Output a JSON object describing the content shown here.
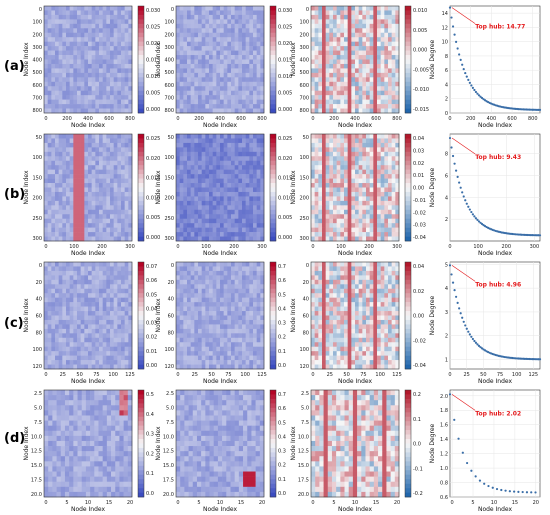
{
  "figure": {
    "rows": [
      {
        "label": "(a)",
        "top_hub_label": "Top hub: 14.77"
      },
      {
        "label": "(b)",
        "top_hub_label": "Top hub: 9.43"
      },
      {
        "label": "(c)",
        "top_hub_label": "Top hub: 4.96"
      },
      {
        "label": "(d)",
        "top_hub_label": "Top hub: 2.02"
      }
    ]
  },
  "colors": {
    "heat_low": "#3b4cc0",
    "heat_mid": "#f7f7f7",
    "heat_high": "#b40426",
    "div_neg": "#2166ac",
    "div_pos": "#b2182b",
    "degree_point": "#3a6ea8",
    "hub_line": "#e41a1c",
    "hub_text": "#e41a1c"
  },
  "chart_data": [
    {
      "row": "(a)",
      "panels": [
        {
          "type": "heatmap",
          "xlabel": "Node Index",
          "ylabel": "Node Index",
          "x_ticks": [
            "0",
            "200",
            "400",
            "600",
            "800"
          ],
          "y_ticks": [
            "0",
            "100",
            "200",
            "300",
            "400",
            "500",
            "600",
            "700",
            "800"
          ],
          "colorbar_ticks": [
            "0.030",
            "0.025",
            "0.020",
            "0.015",
            "0.010",
            "0.005",
            "0.000"
          ],
          "range": [
            0,
            0.032
          ],
          "n": 870
        },
        {
          "type": "heatmap",
          "xlabel": "Node Index",
          "ylabel": "Node Index",
          "x_ticks": [
            "0",
            "200",
            "400",
            "600",
            "800"
          ],
          "y_ticks": [
            "0",
            "100",
            "200",
            "300",
            "400",
            "500",
            "600",
            "700",
            "800"
          ],
          "colorbar_ticks": [
            "0.030",
            "0.025",
            "0.020",
            "0.015",
            "0.010",
            "0.005",
            "0.000"
          ],
          "range": [
            0,
            0.032
          ],
          "n": 870
        },
        {
          "type": "heatmap",
          "xlabel": "Node Index",
          "ylabel": "Node Index",
          "x_ticks": [
            "0",
            "200",
            "400",
            "600",
            "800"
          ],
          "y_ticks": [
            "0",
            "100",
            "200",
            "300",
            "400",
            "500",
            "600",
            "700",
            "800"
          ],
          "colorbar_ticks": [
            "0.010",
            "0.005",
            "0.000",
            "-0.005",
            "-0.010",
            "-0.015"
          ],
          "range": [
            -0.017,
            0.012
          ],
          "n": 870
        },
        {
          "type": "scatter",
          "xlabel": "Node Index",
          "ylabel": "Node Degree",
          "x_ticks": [
            "0",
            "200",
            "400",
            "600",
            "800"
          ],
          "y_ticks": [
            "0",
            "2",
            "4",
            "6",
            "8",
            "10",
            "12",
            "14"
          ],
          "xlim": [
            0,
            870
          ],
          "ylim": [
            0,
            15
          ],
          "top_hub": 14.77,
          "min_degree": 0.4
        }
      ]
    },
    {
      "row": "(b)",
      "panels": [
        {
          "type": "heatmap",
          "xlabel": "Node Index",
          "ylabel": "Node Index",
          "x_ticks": [
            "0",
            "100",
            "200",
            "300"
          ],
          "y_ticks": [
            "50",
            "100",
            "150",
            "200",
            "250",
            "300"
          ],
          "colorbar_ticks": [
            "0.025",
            "0.020",
            "0.015",
            "0.010",
            "0.005",
            "0.000"
          ],
          "range": [
            0,
            0.027
          ],
          "n": 320
        },
        {
          "type": "heatmap",
          "xlabel": "Node Index",
          "ylabel": "Node Index",
          "x_ticks": [
            "0",
            "100",
            "200",
            "300"
          ],
          "y_ticks": [
            "50",
            "100",
            "150",
            "200",
            "250",
            "300"
          ],
          "colorbar_ticks": [
            "0.025",
            "0.020",
            "0.015",
            "0.010",
            "0.005",
            "0.000"
          ],
          "range": [
            0,
            0.027
          ],
          "n": 320
        },
        {
          "type": "heatmap",
          "xlabel": "Node Index",
          "ylabel": "Node Index",
          "x_ticks": [
            "0",
            "100",
            "200",
            "300"
          ],
          "y_ticks": [
            "50",
            "100",
            "150",
            "200",
            "250",
            "300"
          ],
          "colorbar_ticks": [
            "0.04",
            "0.03",
            "0.02",
            "0.01",
            "0.00",
            "-0.01",
            "-0.02",
            "-0.03",
            "-0.04"
          ],
          "range": [
            -0.045,
            0.045
          ],
          "n": 320
        },
        {
          "type": "scatter",
          "xlabel": "Node Index",
          "ylabel": "Node Degree",
          "x_ticks": [
            "0",
            "100",
            "200",
            "300"
          ],
          "y_ticks": [
            "2",
            "4",
            "6",
            "8"
          ],
          "xlim": [
            0,
            320
          ],
          "ylim": [
            0,
            9.8
          ],
          "top_hub": 9.43,
          "min_degree": 0.5
        }
      ]
    },
    {
      "row": "(c)",
      "panels": [
        {
          "type": "heatmap",
          "xlabel": "Node Index",
          "ylabel": "Node Index",
          "x_ticks": [
            "0",
            "25",
            "50",
            "75",
            "100",
            "125"
          ],
          "y_ticks": [
            "0",
            "20",
            "40",
            "60",
            "80",
            "100",
            "120"
          ],
          "colorbar_ticks": [
            "0.07",
            "0.06",
            "0.05",
            "0.04",
            "0.03",
            "0.02",
            "0.01",
            "0.00"
          ],
          "range": [
            0,
            0.075
          ],
          "n": 135
        },
        {
          "type": "heatmap",
          "xlabel": "Node Index",
          "ylabel": "Node Index",
          "x_ticks": [
            "0",
            "25",
            "50",
            "75",
            "100",
            "125"
          ],
          "y_ticks": [
            "0",
            "20",
            "40",
            "60",
            "80",
            "100",
            "120"
          ],
          "colorbar_ticks": [
            "0.7",
            "0.6",
            "0.5",
            "0.4",
            "0.3",
            "0.2",
            "0.1",
            "0.0"
          ],
          "range": [
            0,
            0.75
          ],
          "n": 135
        },
        {
          "type": "heatmap",
          "xlabel": "Node Index",
          "ylabel": "Node Index",
          "x_ticks": [
            "0",
            "25",
            "50",
            "75",
            "100",
            "125"
          ],
          "y_ticks": [
            "0",
            "20",
            "40",
            "60",
            "80",
            "100",
            "120"
          ],
          "colorbar_ticks": [
            "0.04",
            "0.02",
            "0.00",
            "-0.02",
            "-0.04"
          ],
          "range": [
            -0.05,
            0.05
          ],
          "n": 135
        },
        {
          "type": "scatter",
          "xlabel": "Node Index",
          "ylabel": "Node Degree",
          "x_ticks": [
            "0",
            "25",
            "50",
            "75",
            "100",
            "125"
          ],
          "y_ticks": [
            "1",
            "2",
            "3",
            "4",
            "5"
          ],
          "xlim": [
            0,
            135
          ],
          "ylim": [
            0.6,
            5.1
          ],
          "top_hub": 4.96,
          "min_degree": 1.0
        }
      ]
    },
    {
      "row": "(d)",
      "panels": [
        {
          "type": "heatmap",
          "xlabel": "Node Index",
          "ylabel": "Node Index",
          "x_ticks": [
            "0",
            "5",
            "10",
            "15",
            "20"
          ],
          "y_ticks": [
            "2.5",
            "5.0",
            "7.5",
            "10.0",
            "12.5",
            "15.0",
            "17.5",
            "20.0"
          ],
          "colorbar_ticks": [
            "0.5",
            "0.4",
            "0.3",
            "0.2",
            "0.1",
            "0.0"
          ],
          "range": [
            0,
            0.55
          ],
          "n": 21
        },
        {
          "type": "heatmap",
          "xlabel": "Node Index",
          "ylabel": "Node Index",
          "x_ticks": [
            "0",
            "5",
            "10",
            "15",
            "20"
          ],
          "y_ticks": [
            "2.5",
            "5.0",
            "7.5",
            "10.0",
            "12.5",
            "15.0",
            "17.5",
            "20.0"
          ],
          "colorbar_ticks": [
            "0.7",
            "0.6",
            "0.5",
            "0.4",
            "0.3",
            "0.2",
            "0.1",
            "0.0"
          ],
          "range": [
            0,
            0.75
          ],
          "n": 21
        },
        {
          "type": "heatmap",
          "xlabel": "Node Index",
          "ylabel": "Node Index",
          "x_ticks": [
            "0",
            "5",
            "10",
            "15",
            "20"
          ],
          "y_ticks": [
            "2.5",
            "5.0",
            "7.5",
            "10.0",
            "12.5",
            "15.0",
            "17.5",
            "20.0"
          ],
          "colorbar_ticks": [
            "0.2",
            "0.1",
            "0.0",
            "-0.1",
            "-0.2"
          ],
          "range": [
            -0.25,
            0.28
          ],
          "n": 21
        },
        {
          "type": "scatter",
          "xlabel": "Node Index",
          "ylabel": "Node Degree",
          "x_ticks": [
            "0",
            "5",
            "10",
            "15",
            "20"
          ],
          "y_ticks": [
            "0.6",
            "0.8",
            "1.0",
            "1.2",
            "1.4",
            "1.6",
            "1.8",
            "2.0"
          ],
          "xlim": [
            -0.5,
            21
          ],
          "ylim": [
            0.6,
            2.08
          ],
          "top_hub": 2.02,
          "min_degree": 0.66
        }
      ]
    }
  ]
}
